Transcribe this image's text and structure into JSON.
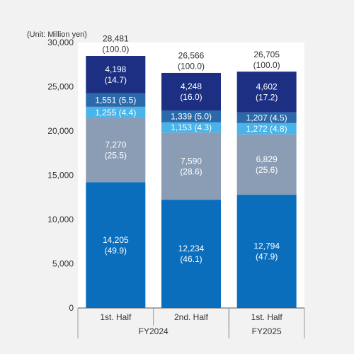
{
  "chart_data": {
    "type": "bar",
    "stacked": true,
    "unit_label": "(Unit: Million yen)",
    "ylim": [
      0,
      30000
    ],
    "yticks": [
      0,
      5000,
      10000,
      15000,
      20000,
      25000,
      30000
    ],
    "ytick_labels": [
      "0",
      "5,000",
      "10,000",
      "15,000",
      "20,000",
      "25,000",
      "30,000"
    ],
    "grid": false,
    "groups": [
      {
        "label": "FY2024",
        "span": [
          0,
          1
        ]
      },
      {
        "label": "FY2025",
        "span": [
          2,
          2
        ]
      }
    ],
    "categories": [
      "1st. Half",
      "2nd. Half",
      "1st. Half"
    ],
    "totals": [
      {
        "value": 28481,
        "value_label": "28,481",
        "pct_label": "(100.0)"
      },
      {
        "value": 26566,
        "value_label": "26,566",
        "pct_label": "(100.0)"
      },
      {
        "value": 26705,
        "value_label": "26,705",
        "pct_label": "(100.0)"
      }
    ],
    "series": [
      {
        "color": "#0a6ebd",
        "values": [
          14205,
          12234,
          12794
        ],
        "labels": [
          "14,205\n(49.9)",
          "12,234\n(46.1)",
          "12,794\n(47.9)"
        ]
      },
      {
        "color": "#8a9db4",
        "values": [
          7270,
          7590,
          6829
        ],
        "labels": [
          "7,270\n(25.5)",
          "7,590\n(28.6)",
          "6,829\n(25.6)"
        ]
      },
      {
        "color": "#49b4ea",
        "values": [
          1255,
          1153,
          1272
        ],
        "labels": [
          "1,255 (4.4)",
          "1,153 (4.3)",
          "1,272 (4.8)"
        ]
      },
      {
        "color": "#2b6aaa",
        "values": [
          1551,
          1339,
          1207
        ],
        "labels": [
          "1,551 (5.5)",
          "1,339 (5.0)",
          "1,207 (4.5)"
        ]
      },
      {
        "color": "#1c2f82",
        "values": [
          4198,
          4248,
          4602
        ],
        "labels": [
          "4,198\n(14.7)",
          "4,248\n(16.0)",
          "4,602\n(17.2)"
        ]
      }
    ],
    "colors": {
      "background": "#f2f2f2",
      "plot_background": "#ffffff",
      "axis": "#555555",
      "text": "#333333",
      "segment_text": "#ffffff"
    }
  }
}
